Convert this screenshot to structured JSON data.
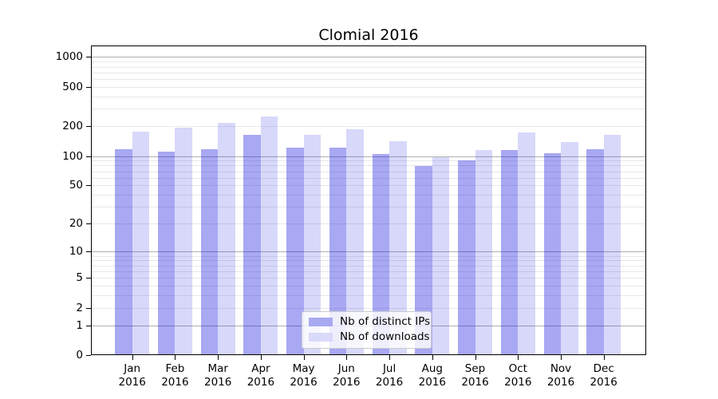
{
  "chart_data": {
    "type": "bar",
    "title": "Clomial 2016",
    "categories": [
      "Jan",
      "Feb",
      "Mar",
      "Apr",
      "May",
      "Jun",
      "Jul",
      "Aug",
      "Sep",
      "Oct",
      "Nov",
      "Dec"
    ],
    "x_axis": {
      "year_label": "2016"
    },
    "y_axis": {
      "scale": "log1p",
      "tick_labels": [
        0,
        1,
        2,
        5,
        10,
        20,
        50,
        100,
        200,
        500,
        1000
      ],
      "major_gridlines": [
        1,
        10,
        100,
        1000
      ],
      "minor_gridlines": [
        2,
        3,
        4,
        5,
        6,
        7,
        8,
        9,
        20,
        30,
        40,
        50,
        60,
        70,
        80,
        90,
        200,
        300,
        400,
        500,
        600,
        700,
        800,
        900
      ],
      "range": [
        0,
        1300
      ],
      "grid": "on"
    },
    "series": [
      {
        "name": "Nb of distinct IPs",
        "color": "rgba(15,15,222,0.36)",
        "legend_color": "#a9a9f1",
        "values": [
          117,
          110,
          117,
          165,
          121,
          122,
          105,
          79,
          91,
          116,
          106,
          118
        ]
      },
      {
        "name": "Nb of downloads",
        "color": "rgba(15,15,222,0.16)",
        "legend_color": "#d9d9f9",
        "values": [
          178,
          192,
          215,
          250,
          165,
          188,
          141,
          98,
          115,
          172,
          138,
          164
        ]
      }
    ],
    "legend": {
      "position": "lower center"
    }
  },
  "colors": {
    "background": "#ffffff",
    "spine": "#000000",
    "major_grid": "#b0b0b0",
    "minor_grid": "#e8e8e8",
    "text": "#000000"
  }
}
